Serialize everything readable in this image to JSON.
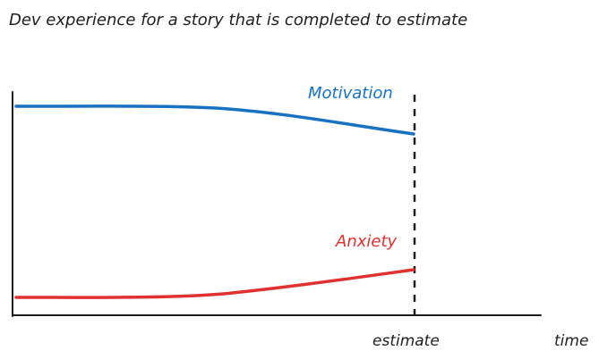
{
  "title": "Dev experience for a story that is completed to estimate",
  "labels": {
    "motivation": "Motivation",
    "anxiety": "Anxiety",
    "estimate": "estimate",
    "time": "time"
  },
  "colors": {
    "motivation": "#1971c2",
    "anxiety": "#e03131",
    "ink": "#1e1e1e"
  }
}
